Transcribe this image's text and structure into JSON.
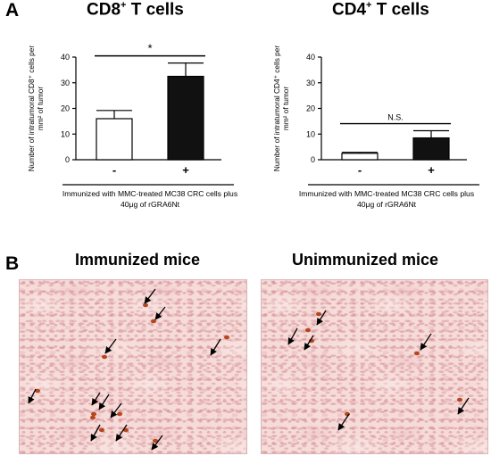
{
  "panel_a": {
    "letter": "A",
    "caption": "Immunized with MMC-treated MC38 CRC cells plus 40μg of rGRA6Nt"
  },
  "panel_b": {
    "letter": "B",
    "left_title": "Immunized mice",
    "right_title": "Unimmunized mice"
  },
  "chart_data": [
    {
      "type": "bar",
      "title": "CD8+ T cells",
      "title_main": "CD8",
      "title_sup": "+",
      "title_rest": " T cells",
      "ylabel_lines": [
        "Number of intratumoral CD8⁺ cells per",
        "mm² of tumor"
      ],
      "categories": [
        "-",
        "+"
      ],
      "values": [
        16,
        32.5
      ],
      "errors": [
        3.2,
        5.2
      ],
      "bar_colors": [
        "#ffffff",
        "#111111"
      ],
      "ylim": [
        0,
        40
      ],
      "yticks": [
        0,
        10,
        20,
        30,
        40
      ],
      "significance": "*"
    },
    {
      "type": "bar",
      "title": "CD4+ T cells",
      "title_main": "CD4",
      "title_sup": "+",
      "title_rest": " T cells",
      "ylabel_lines": [
        "Number of intratumoral CD4⁺ cells per",
        "mm² of tumor"
      ],
      "categories": [
        "-",
        "+"
      ],
      "values": [
        2.5,
        8.5
      ],
      "errors": [
        0.4,
        2.8
      ],
      "bar_colors": [
        "#ffffff",
        "#111111"
      ],
      "ylim": [
        0,
        40
      ],
      "yticks": [
        0,
        10,
        20,
        30,
        40
      ],
      "significance": "N.S."
    }
  ]
}
